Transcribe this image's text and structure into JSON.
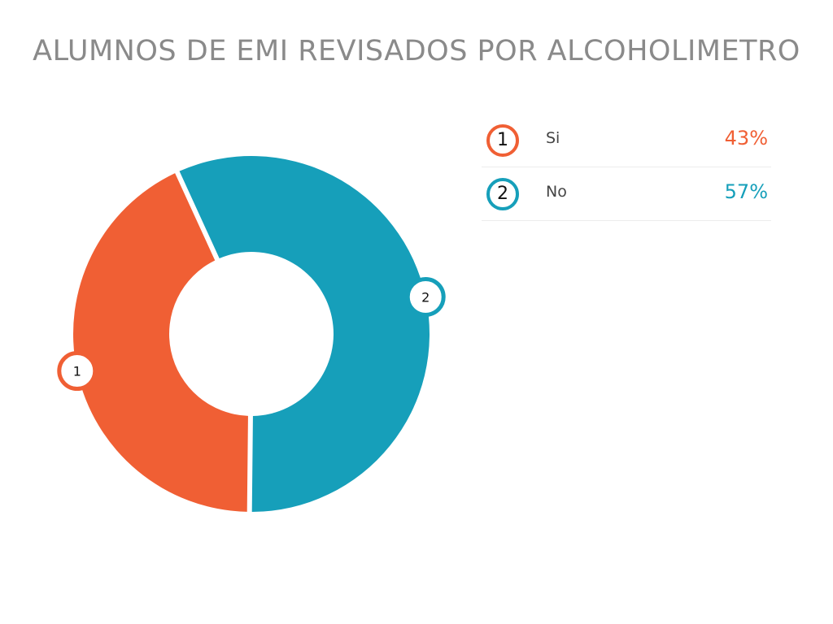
{
  "chart_data": {
    "type": "pie",
    "style": "donut",
    "title": "ALUMNOS DE EMI REVISADOS POR ALCOHOLIMETRO",
    "legend_position": "right",
    "slices": [
      {
        "marker": "1",
        "label": "Si",
        "percent_label": "43%",
        "value": 43,
        "color": "#f05f34"
      },
      {
        "marker": "2",
        "label": "No",
        "percent_label": "57%",
        "value": 57,
        "color": "#169fba"
      }
    ]
  }
}
